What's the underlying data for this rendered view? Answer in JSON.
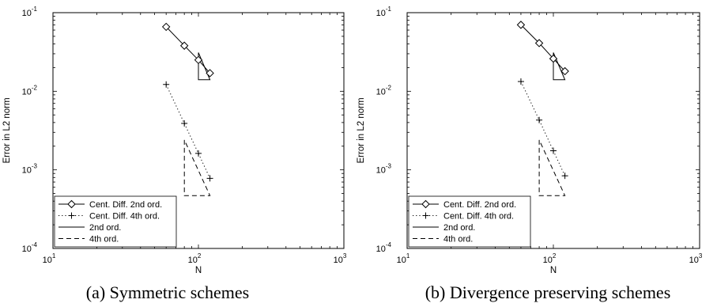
{
  "chart_data": [
    {
      "type": "line",
      "caption": "(a)  Symmetric schemes",
      "xlabel": "N",
      "ylabel": "Error in L2 norm",
      "xscale": "log",
      "yscale": "log",
      "xlim": [
        10,
        1000
      ],
      "ylim": [
        0.0001,
        0.1
      ],
      "x_tick_labels": [
        {
          "base": "10",
          "exp": "1"
        },
        {
          "base": "10",
          "exp": "2"
        },
        {
          "base": "10",
          "exp": "3"
        }
      ],
      "y_tick_labels": [
        {
          "base": "10",
          "exp": "-4"
        },
        {
          "base": "10",
          "exp": "-3"
        },
        {
          "base": "10",
          "exp": "-2"
        },
        {
          "base": "10",
          "exp": "-1"
        }
      ],
      "legend_position": "bottom-left",
      "series": [
        {
          "name": "Cent. Diff. 2nd ord.",
          "style": "solid",
          "marker": "diamond",
          "x": [
            60,
            80,
            100,
            120
          ],
          "y": [
            0.066,
            0.038,
            0.025,
            0.017
          ]
        },
        {
          "name": "Cent. Diff. 4th ord.",
          "style": "dotted",
          "marker": "plus",
          "x": [
            60,
            80,
            100,
            120
          ],
          "y": [
            0.0122,
            0.0039,
            0.00162,
            0.00078
          ]
        }
      ],
      "reference_triangles": [
        {
          "name": "2nd ord.",
          "style": "solid",
          "points": [
            [
              100,
              0.031
            ],
            [
              100,
              0.014
            ],
            [
              120,
              0.014
            ]
          ]
        },
        {
          "name": "4th ord.",
          "style": "dashed",
          "points": [
            [
              80,
              0.0024
            ],
            [
              80,
              0.00047
            ],
            [
              120,
              0.00047
            ]
          ]
        }
      ]
    },
    {
      "type": "line",
      "caption": "(b)  Divergence preserving schemes",
      "xlabel": "N",
      "ylabel": "Error in L2 norm",
      "xscale": "log",
      "yscale": "log",
      "xlim": [
        10,
        1000
      ],
      "ylim": [
        0.0001,
        0.1
      ],
      "x_tick_labels": [
        {
          "base": "10",
          "exp": "1"
        },
        {
          "base": "10",
          "exp": "2"
        },
        {
          "base": "10",
          "exp": "3"
        }
      ],
      "y_tick_labels": [
        {
          "base": "10",
          "exp": "-4"
        },
        {
          "base": "10",
          "exp": "-3"
        },
        {
          "base": "10",
          "exp": "-2"
        },
        {
          "base": "10",
          "exp": "-1"
        }
      ],
      "legend_position": "bottom-left",
      "series": [
        {
          "name": "Cent. Diff. 2nd ord.",
          "style": "solid",
          "marker": "diamond",
          "x": [
            60,
            80,
            100,
            120
          ],
          "y": [
            0.07,
            0.041,
            0.026,
            0.018
          ]
        },
        {
          "name": "Cent. Diff. 4th ord.",
          "style": "dotted",
          "marker": "plus",
          "x": [
            60,
            80,
            100,
            120
          ],
          "y": [
            0.0133,
            0.0043,
            0.00175,
            0.00084
          ]
        }
      ],
      "reference_triangles": [
        {
          "name": "2nd ord.",
          "style": "solid",
          "points": [
            [
              100,
              0.031
            ],
            [
              100,
              0.014
            ],
            [
              120,
              0.014
            ]
          ]
        },
        {
          "name": "4th ord.",
          "style": "dashed",
          "points": [
            [
              80,
              0.0024
            ],
            [
              80,
              0.00047
            ],
            [
              120,
              0.00047
            ]
          ]
        }
      ]
    }
  ]
}
